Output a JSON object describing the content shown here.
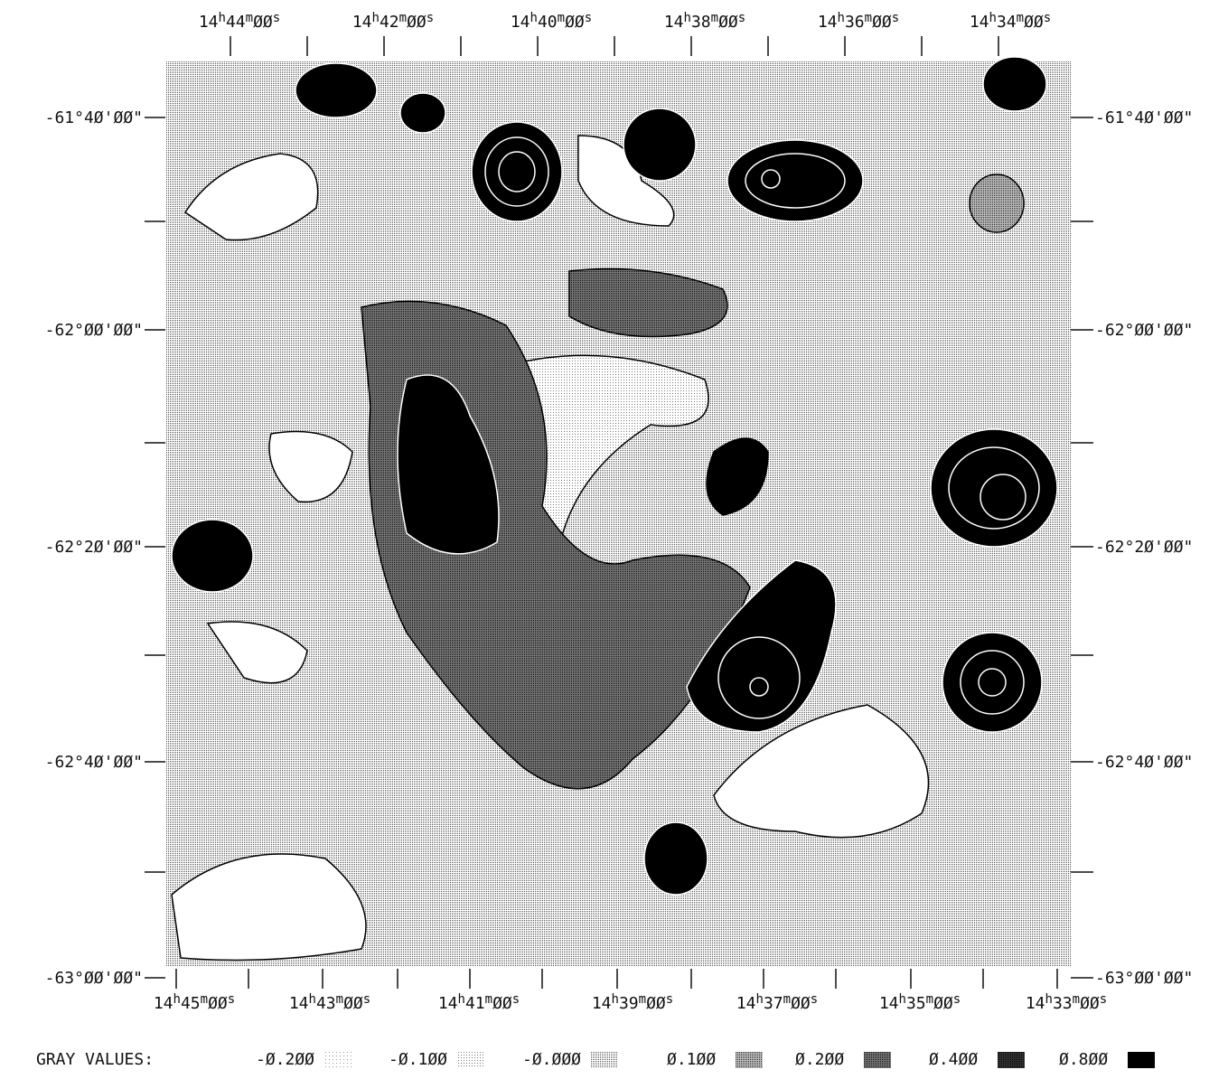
{
  "top_labels": [
    "14h44mØØs",
    "14h42mØØs",
    "14h40mØØs",
    "14h38mØØs",
    "14h36mØØs",
    "14h34mØØs"
  ],
  "bottom_labels": [
    "14h45mØØs",
    "14h43mØØs",
    "14h41mØØs",
    "14h39mØØs",
    "14h37mØØs",
    "14h35mØØs",
    "14h33mØØs"
  ],
  "left_labels": [
    "-61°4Ø'ØØ\"",
    "-62°ØØ'ØØ\"",
    "-62°2Ø'ØØ\"",
    "-62°4Ø'ØØ\"",
    "-63°ØØ'ØØ\""
  ],
  "right_labels": [
    "-61°4Ø'ØØ\"",
    "-62°ØØ'ØØ\"",
    "-62°2Ø'ØØ\"",
    "-62°4Ø'ØØ\"",
    "-63°ØØ'ØØ\""
  ],
  "legend": {
    "title": "GRAY VALUES:",
    "items": [
      "-Ø.2ØØ",
      "-Ø.1ØØ",
      "-Ø.ØØØ",
      "Ø.1ØØ",
      "Ø.2ØØ",
      "Ø.4ØØ",
      "Ø.8ØØ"
    ]
  }
}
